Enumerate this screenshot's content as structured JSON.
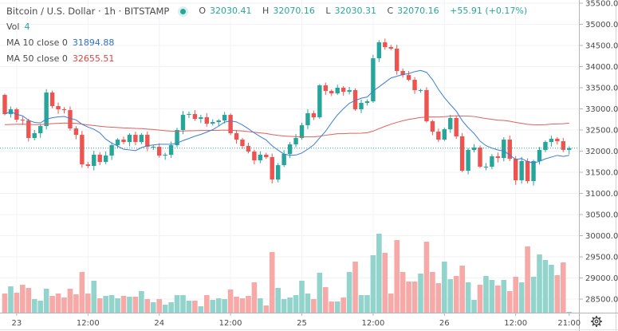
{
  "header": {
    "symbol_title": "Bitcoin / U.S. Dollar · 1h · BITSTAMP",
    "open_label": "O",
    "open": "32030.41",
    "high_label": "H",
    "high": "32070.16",
    "low_label": "L",
    "low": "32030.31",
    "close_label": "C",
    "close": "32070.16",
    "change": "+55.91 (+0.17%)"
  },
  "indicators": {
    "vol_label": "Vol",
    "vol_value": "4",
    "ma10_label": "MA 10 close 0",
    "ma10_value": "31894.88",
    "ma50_label": "MA 50 close 0",
    "ma50_value": "32655.51"
  },
  "colors": {
    "up": "#26a69a",
    "down": "#ef5350",
    "up_vol": "#92d3cc",
    "down_vol": "#f6a9a6",
    "ma10": "#3b7dd8",
    "ma50": "#e0605a",
    "grid": "#f0f2f5"
  },
  "chart_data": {
    "type": "candlestick",
    "interval": "1h",
    "first_open": 33330,
    "close": [
      32877,
      32990,
      32745,
      32726,
      32311,
      32424,
      32594,
      33386,
      33066,
      32990,
      32971,
      32537,
      32386,
      31687,
      31650,
      31915,
      31745,
      31896,
      32141,
      32273,
      32216,
      32386,
      32216,
      32386,
      32103,
      32103,
      31896,
      31915,
      32141,
      32500,
      32858,
      32877,
      32764,
      32801,
      32651,
      32688,
      32726,
      32858,
      32424,
      32273,
      32122,
      31990,
      31783,
      31915,
      31858,
      31330,
      31669,
      31934,
      32160,
      32311,
      32613,
      32896,
      32801,
      33556,
      33424,
      33367,
      33500,
      33405,
      33443,
      32990,
      33141,
      33179,
      34197,
      34575,
      34462,
      34424,
      33896,
      33801,
      33688,
      33443,
      33443,
      32707,
      32462,
      32273,
      32518,
      32783,
      32349,
      31537,
      32028,
      32085,
      31632,
      31632,
      31877,
      31839,
      32273,
      31820,
      31311,
      31764,
      31292,
      31764,
      32028,
      32216,
      32292,
      32235,
      32030,
      32070.16
    ],
    "volume_relative": [
      24,
      33,
      25,
      35,
      31,
      17,
      15,
      30,
      21,
      24,
      19,
      30,
      23,
      51,
      24,
      40,
      18,
      21,
      22,
      18,
      21,
      20,
      20,
      27,
      17,
      13,
      17,
      10,
      13,
      22,
      22,
      15,
      15,
      8,
      22,
      16,
      18,
      17,
      29,
      20,
      18,
      21,
      38,
      18,
      9,
      76,
      31,
      17,
      19,
      22,
      40,
      24,
      17,
      50,
      32,
      14,
      14,
      19,
      51,
      64,
      22,
      22,
      72,
      99,
      75,
      24,
      91,
      51,
      39,
      39,
      49,
      89,
      51,
      37,
      64,
      42,
      46,
      59,
      38,
      16,
      35,
      46,
      41,
      34,
      41,
      27,
      45,
      38,
      83,
      45,
      73,
      66,
      60,
      47,
      63,
      1
    ],
    "y_ticks": [
      "35500.00",
      "35000.00",
      "34500.00",
      "34000.00",
      "33500.00",
      "33000.00",
      "32500.00",
      "32000.00",
      "31500.00",
      "31000.00",
      "30500.00",
      "30000.00",
      "29500.00",
      "29000.00",
      "28500.00"
    ],
    "x_ticks": [
      "23",
      "12:00",
      "24",
      "12:00",
      "25",
      "12:00",
      "26",
      "12:00",
      "21:00"
    ],
    "ma_periods": [
      10,
      50
    ],
    "last_price": 32070.16
  }
}
